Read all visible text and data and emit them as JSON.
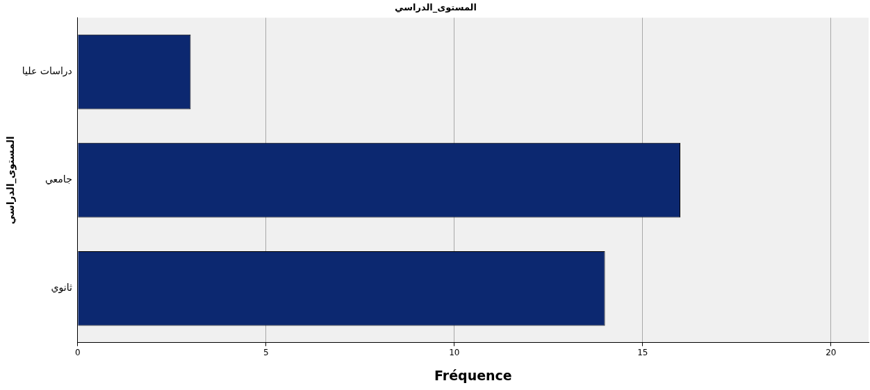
{
  "chart_data": {
    "type": "bar",
    "orientation": "horizontal",
    "title": "المستوى_الدراسي",
    "xlabel": "Fréquence",
    "ylabel": "المستوى_الدراسي",
    "categories": [
      "دراسات عليا",
      "جامعي",
      "ثانوي"
    ],
    "values": [
      3,
      16,
      14
    ],
    "color": "#0c2870",
    "xlim": [
      0,
      21
    ],
    "xticks": [
      0,
      5,
      10,
      15,
      20
    ],
    "grid": "x"
  }
}
